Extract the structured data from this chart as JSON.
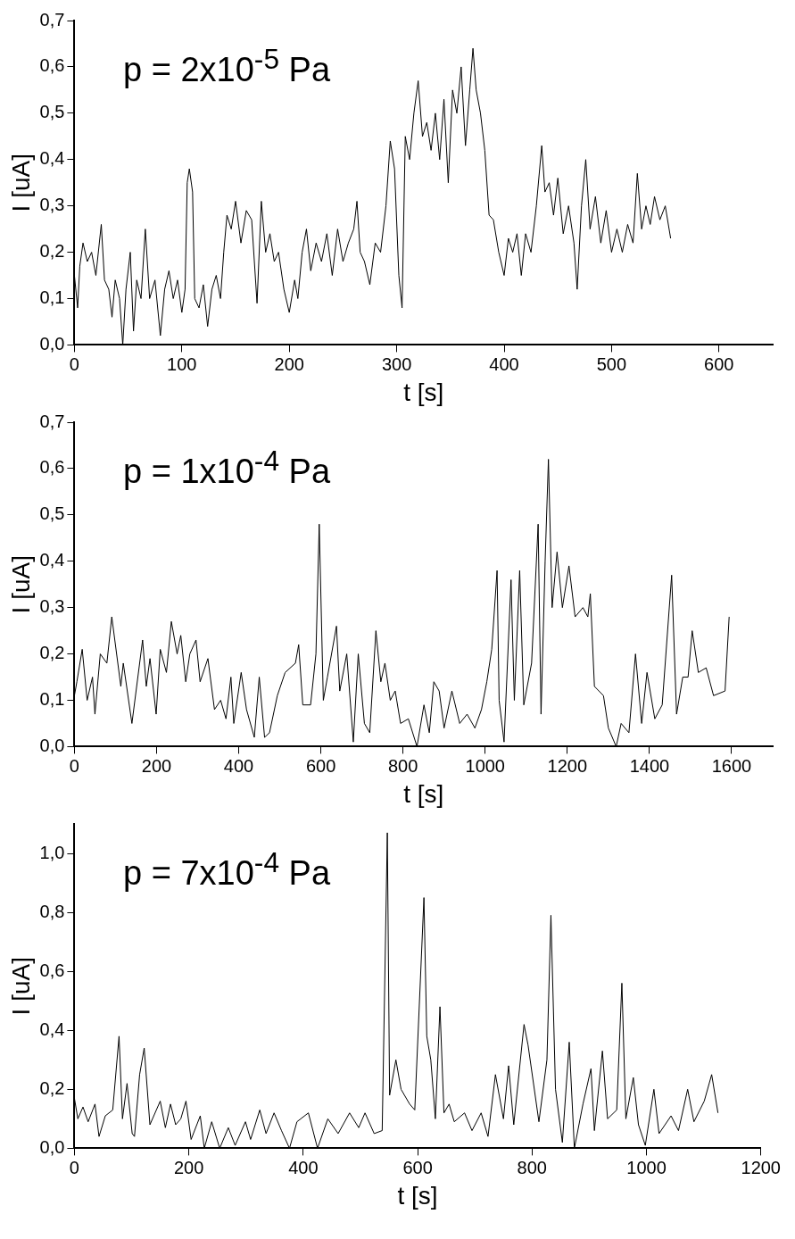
{
  "chart_data": [
    {
      "type": "line",
      "annotations": [
        "p = 2x10$^{-5}$ Pa"
      ],
      "xlabel": "t [s]",
      "ylabel": "I [uA]",
      "grid": false,
      "legend": false,
      "marker": "none",
      "xlim": [
        0,
        650
      ],
      "xticks": [
        0,
        100,
        200,
        300,
        400,
        500,
        600
      ],
      "ylim": [
        0,
        0.7
      ],
      "yticks": [
        {
          "value": 0,
          "label": "0,0"
        },
        {
          "value": 0.1,
          "label": "0,1"
        },
        {
          "value": 0.2,
          "label": "0,2"
        },
        {
          "value": 0.3,
          "label": "0,3"
        },
        {
          "value": 0.4,
          "label": "0,4"
        },
        {
          "value": 0.5,
          "label": "0,5"
        },
        {
          "value": 0.6,
          "label": "0,6"
        },
        {
          "value": 0.7,
          "label": "0,7"
        }
      ],
      "series": [
        {
          "color": "#000000",
          "x": [
            0,
            3,
            5,
            8,
            12,
            16,
            20,
            25,
            28,
            32,
            35,
            38,
            42,
            45,
            48,
            52,
            55,
            58,
            62,
            66,
            70,
            75,
            80,
            84,
            88,
            92,
            96,
            100,
            103,
            105,
            107,
            110,
            112,
            116,
            120,
            124,
            128,
            132,
            136,
            139,
            142,
            146,
            150,
            155,
            160,
            165,
            170,
            174,
            178,
            182,
            186,
            190,
            195,
            200,
            205,
            208,
            212,
            216,
            220,
            225,
            230,
            235,
            240,
            245,
            250,
            255,
            260,
            263,
            266,
            270,
            275,
            280,
            285,
            290,
            294,
            298,
            302,
            305,
            308,
            312,
            316,
            320,
            324,
            328,
            332,
            336,
            340,
            344,
            348,
            352,
            356,
            360,
            364,
            368,
            371,
            374,
            378,
            382,
            386,
            390,
            395,
            400,
            404,
            408,
            412,
            416,
            420,
            425,
            430,
            435,
            438,
            442,
            446,
            450,
            455,
            460,
            465,
            468,
            472,
            476,
            480,
            485,
            490,
            495,
            500,
            505,
            510,
            515,
            520,
            524,
            528,
            532,
            536,
            540,
            545,
            550,
            555
          ],
          "values": [
            0.15,
            0.08,
            0.17,
            0.22,
            0.18,
            0.2,
            0.15,
            0.26,
            0.14,
            0.12,
            0.06,
            0.14,
            0.1,
            0.0,
            0.12,
            0.2,
            0.03,
            0.14,
            0.1,
            0.25,
            0.1,
            0.14,
            0.02,
            0.12,
            0.16,
            0.1,
            0.14,
            0.07,
            0.12,
            0.35,
            0.38,
            0.33,
            0.1,
            0.08,
            0.13,
            0.04,
            0.12,
            0.15,
            0.1,
            0.2,
            0.28,
            0.25,
            0.31,
            0.22,
            0.29,
            0.27,
            0.09,
            0.31,
            0.2,
            0.24,
            0.18,
            0.2,
            0.12,
            0.07,
            0.14,
            0.1,
            0.2,
            0.25,
            0.16,
            0.22,
            0.18,
            0.24,
            0.15,
            0.25,
            0.18,
            0.22,
            0.25,
            0.31,
            0.2,
            0.18,
            0.13,
            0.22,
            0.2,
            0.3,
            0.44,
            0.38,
            0.15,
            0.08,
            0.45,
            0.4,
            0.5,
            0.57,
            0.45,
            0.48,
            0.42,
            0.5,
            0.4,
            0.53,
            0.35,
            0.55,
            0.5,
            0.6,
            0.43,
            0.55,
            0.64,
            0.55,
            0.5,
            0.42,
            0.28,
            0.27,
            0.2,
            0.15,
            0.23,
            0.2,
            0.24,
            0.15,
            0.24,
            0.2,
            0.3,
            0.43,
            0.33,
            0.35,
            0.28,
            0.36,
            0.24,
            0.3,
            0.22,
            0.12,
            0.3,
            0.4,
            0.25,
            0.32,
            0.22,
            0.29,
            0.2,
            0.25,
            0.2,
            0.26,
            0.22,
            0.37,
            0.25,
            0.3,
            0.26,
            0.32,
            0.27,
            0.3,
            0.23
          ]
        }
      ]
    },
    {
      "type": "line",
      "annotations": [
        "p = 1x10$^{-4}$ Pa"
      ],
      "xlabel": "t [s]",
      "ylabel": "I [uA]",
      "grid": false,
      "legend": false,
      "marker": "none",
      "xlim": [
        0,
        1700
      ],
      "xticks": [
        0,
        200,
        400,
        600,
        800,
        1000,
        1200,
        1400,
        1600
      ],
      "ylim": [
        0,
        0.7
      ],
      "yticks": [
        {
          "value": 0,
          "label": "0,0"
        },
        {
          "value": 0.1,
          "label": "0,1"
        },
        {
          "value": 0.2,
          "label": "0,2"
        },
        {
          "value": 0.3,
          "label": "0,3"
        },
        {
          "value": 0.4,
          "label": "0,4"
        },
        {
          "value": 0.5,
          "label": "0,5"
        },
        {
          "value": 0.6,
          "label": "0,6"
        },
        {
          "value": 0.7,
          "label": "0,7"
        }
      ],
      "series": [
        {
          "color": "#000000",
          "x": [
            0,
            6,
            19,
            31,
            44,
            50,
            63,
            79,
            91,
            113,
            119,
            140,
            166,
            175,
            184,
            199,
            209,
            224,
            236,
            250,
            259,
            271,
            281,
            296,
            306,
            325,
            341,
            356,
            369,
            381,
            388,
            406,
            419,
            438,
            450,
            463,
            475,
            494,
            513,
            538,
            546,
            556,
            575,
            588,
            596,
            606,
            616,
            638,
            646,
            663,
            679,
            691,
            706,
            719,
            734,
            746,
            756,
            769,
            781,
            794,
            813,
            834,
            851,
            864,
            875,
            888,
            900,
            919,
            938,
            956,
            975,
            991,
            1004,
            1016,
            1029,
            1034,
            1046,
            1063,
            1071,
            1084,
            1094,
            1113,
            1129,
            1136,
            1146,
            1154,
            1163,
            1175,
            1188,
            1204,
            1219,
            1238,
            1250,
            1256,
            1266,
            1288,
            1300,
            1319,
            1331,
            1350,
            1366,
            1381,
            1394,
            1413,
            1431,
            1454,
            1466,
            1481,
            1494,
            1504,
            1519,
            1538,
            1556,
            1584,
            1594
          ],
          "values": [
            0.11,
            0.14,
            0.21,
            0.1,
            0.15,
            0.07,
            0.2,
            0.18,
            0.28,
            0.13,
            0.18,
            0.05,
            0.23,
            0.13,
            0.19,
            0.07,
            0.21,
            0.16,
            0.27,
            0.2,
            0.24,
            0.14,
            0.2,
            0.23,
            0.14,
            0.19,
            0.08,
            0.1,
            0.06,
            0.15,
            0.05,
            0.16,
            0.08,
            0.02,
            0.15,
            0.02,
            0.03,
            0.11,
            0.16,
            0.18,
            0.22,
            0.09,
            0.09,
            0.2,
            0.48,
            0.1,
            0.15,
            0.26,
            0.12,
            0.2,
            0.01,
            0.2,
            0.05,
            0.03,
            0.25,
            0.14,
            0.18,
            0.1,
            0.12,
            0.05,
            0.06,
            0.0,
            0.09,
            0.03,
            0.14,
            0.12,
            0.04,
            0.12,
            0.05,
            0.07,
            0.04,
            0.08,
            0.14,
            0.21,
            0.38,
            0.1,
            0.01,
            0.36,
            0.1,
            0.38,
            0.09,
            0.18,
            0.48,
            0.07,
            0.4,
            0.62,
            0.3,
            0.42,
            0.3,
            0.39,
            0.28,
            0.3,
            0.28,
            0.33,
            0.13,
            0.11,
            0.04,
            0.0,
            0.05,
            0.03,
            0.2,
            0.05,
            0.16,
            0.06,
            0.09,
            0.37,
            0.07,
            0.15,
            0.15,
            0.25,
            0.16,
            0.17,
            0.11,
            0.12,
            0.28
          ]
        }
      ]
    },
    {
      "type": "line",
      "annotations": [
        "p = 7x10$^{-4}$ Pa"
      ],
      "xlabel": "t [s]",
      "ylabel": "I [uA]",
      "grid": false,
      "legend": false,
      "marker": "none",
      "xlim": [
        0,
        1200
      ],
      "xticks": [
        0,
        200,
        400,
        600,
        800,
        1000,
        1200
      ],
      "ylim": [
        0,
        1.1
      ],
      "yticks": [
        {
          "value": 0,
          "label": "0,0"
        },
        {
          "value": 0.2,
          "label": "0,2"
        },
        {
          "value": 0.4,
          "label": "0,4"
        },
        {
          "value": 0.6,
          "label": "0,6"
        },
        {
          "value": 0.8,
          "label": "0,8"
        },
        {
          "value": 1,
          "label": "1,0"
        }
      ],
      "series": [
        {
          "color": "#000000",
          "x": [
            0,
            6,
            15,
            24,
            36,
            43,
            54,
            67,
            78,
            84,
            92,
            101,
            105,
            114,
            122,
            132,
            150,
            159,
            168,
            177,
            186,
            195,
            204,
            220,
            227,
            240,
            254,
            269,
            281,
            299,
            308,
            324,
            335,
            349,
            362,
            376,
            389,
            409,
            425,
            443,
            461,
            481,
            497,
            508,
            524,
            538,
            547,
            551,
            562,
            571,
            586,
            595,
            611,
            616,
            623,
            631,
            639,
            646,
            655,
            664,
            682,
            695,
            711,
            723,
            736,
            750,
            759,
            768,
            786,
            793,
            812,
            826,
            833,
            841,
            853,
            865,
            874,
            889,
            903,
            909,
            923,
            932,
            948,
            957,
            964,
            977,
            986,
            998,
            1013,
            1022,
            1043,
            1056,
            1072,
            1083,
            1101,
            1114,
            1125
          ],
          "values": [
            0.17,
            0.1,
            0.14,
            0.09,
            0.15,
            0.04,
            0.11,
            0.13,
            0.38,
            0.1,
            0.22,
            0.05,
            0.04,
            0.25,
            0.34,
            0.08,
            0.16,
            0.07,
            0.15,
            0.08,
            0.1,
            0.16,
            0.03,
            0.11,
            0.0,
            0.09,
            0.0,
            0.07,
            0.01,
            0.09,
            0.03,
            0.13,
            0.05,
            0.12,
            0.06,
            0.0,
            0.09,
            0.12,
            0.0,
            0.1,
            0.05,
            0.12,
            0.07,
            0.12,
            0.05,
            0.06,
            1.07,
            0.18,
            0.3,
            0.2,
            0.15,
            0.13,
            0.85,
            0.38,
            0.3,
            0.1,
            0.48,
            0.12,
            0.15,
            0.09,
            0.12,
            0.06,
            0.12,
            0.04,
            0.25,
            0.1,
            0.28,
            0.08,
            0.42,
            0.35,
            0.09,
            0.3,
            0.79,
            0.2,
            0.02,
            0.36,
            0.0,
            0.15,
            0.27,
            0.06,
            0.33,
            0.1,
            0.13,
            0.56,
            0.1,
            0.24,
            0.08,
            0.01,
            0.2,
            0.05,
            0.11,
            0.06,
            0.2,
            0.09,
            0.16,
            0.25,
            0.12
          ]
        }
      ]
    }
  ]
}
